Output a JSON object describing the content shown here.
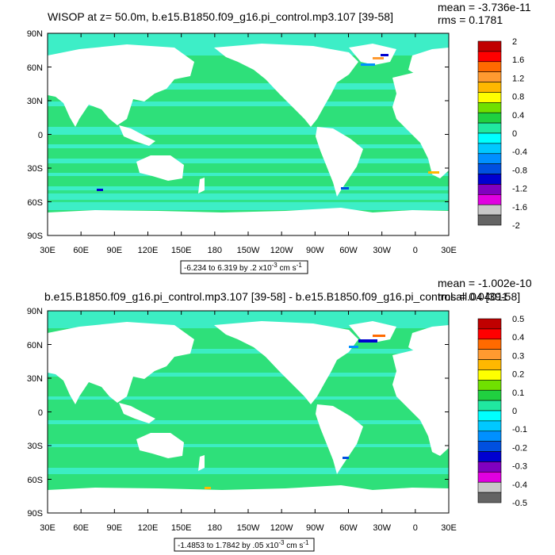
{
  "panels": [
    {
      "title": "WISOP at z=  50.0m, b.e15.B1850.f09_g16.pi_control.mp3.107 [39-58]",
      "stats": {
        "mean": "mean = -3.736e-11",
        "rms": "rms = 0.1781"
      },
      "lat_labels": [
        "90N",
        "60N",
        "30N",
        "0",
        "30S",
        "60S",
        "90S"
      ],
      "lon_labels": [
        "30E",
        "60E",
        "90E",
        "120E",
        "150E",
        "180",
        "150W",
        "120W",
        "90W",
        "60W",
        "30W",
        "0",
        "30E"
      ],
      "range_note": {
        "text": "-6.234 to 6.319 by .2 x10",
        "exp": "-3",
        "units": " cm s",
        "unit_exp": "-1"
      },
      "colorbar": {
        "labels": [
          "2",
          "1.6",
          "1.2",
          "0.8",
          "0.4",
          "0",
          "-0.4",
          "-0.8",
          "-1.2",
          "-1.6",
          "-2"
        ],
        "colors": [
          "#c00000",
          "#ff0000",
          "#ff6a00",
          "#ff9a30",
          "#ffb800",
          "#ffff00",
          "#70e000",
          "#20d040",
          "#20e8a0",
          "#00ffff",
          "#00c8ff",
          "#0090ff",
          "#0050e0",
          "#0000d0",
          "#8000c0",
          "#e000e0",
          "#c8c8c8",
          "#646464"
        ]
      }
    },
    {
      "title": "b.e15.B1850.f09_g16.pi_control.mp3.107 [39-58] - b.e15.B1850.f09_g16.pi_control.all.04 [39-58]",
      "stats": {
        "mean": "mean = -1.002e-10",
        "rms": "rms = 0.04011"
      },
      "lat_labels": [
        "90N",
        "60N",
        "30N",
        "0",
        "30S",
        "60S",
        "90S"
      ],
      "lon_labels": [
        "30E",
        "60E",
        "90E",
        "120E",
        "150E",
        "180",
        "150W",
        "120W",
        "90W",
        "60W",
        "30W",
        "0",
        "30E"
      ],
      "range_note": {
        "text": "-1.4853 to 1.7842 by .05 x10",
        "exp": "-3",
        "units": " cm s",
        "unit_exp": "-1"
      },
      "colorbar": {
        "labels": [
          "0.5",
          "0.4",
          "0.3",
          "0.2",
          "0.1",
          "0",
          "-0.1",
          "-0.2",
          "-0.3",
          "-0.4",
          "-0.5"
        ],
        "colors": [
          "#c00000",
          "#ff0000",
          "#ff6a00",
          "#ff9a30",
          "#ffb800",
          "#ffff00",
          "#70e000",
          "#20d040",
          "#20e8a0",
          "#00ffff",
          "#00c8ff",
          "#0090ff",
          "#0050e0",
          "#0000d0",
          "#8000c0",
          "#e000e0",
          "#c8c8c8",
          "#646464"
        ]
      }
    }
  ],
  "colors": {
    "ocean_main": "#2ee07a",
    "ocean_band": "#3ff0d0",
    "land": "#ffffff"
  }
}
